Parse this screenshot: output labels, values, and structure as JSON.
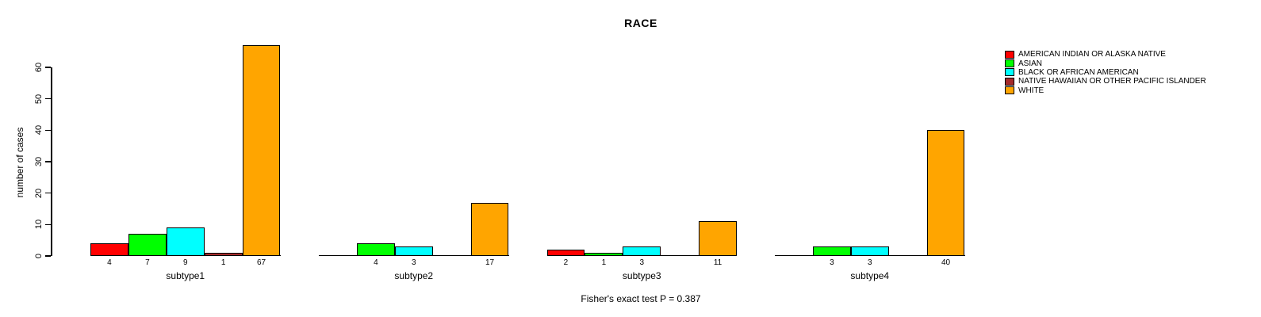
{
  "chart_data": {
    "type": "bar",
    "title": "RACE",
    "ylabel": "number of cases",
    "xlabel": "",
    "yticks": [
      0,
      10,
      20,
      30,
      40,
      50,
      60
    ],
    "ylim": [
      0,
      67
    ],
    "grid": false,
    "legend_position": "top-right",
    "categories": [
      "subtype1",
      "subtype2",
      "subtype3",
      "subtype4"
    ],
    "series": [
      {
        "name": "AMERICAN INDIAN OR ALASKA NATIVE",
        "color": "#FF0000",
        "values": [
          4,
          0,
          2,
          0
        ]
      },
      {
        "name": "ASIAN",
        "color": "#00FF00",
        "values": [
          7,
          4,
          1,
          3
        ]
      },
      {
        "name": "BLACK OR AFRICAN AMERICAN",
        "color": "#00FFFF",
        "values": [
          9,
          3,
          3,
          3
        ]
      },
      {
        "name": "NATIVE HAWAIIAN OR OTHER PACIFIC ISLANDER",
        "color": "#A52A2A",
        "values": [
          1,
          0,
          0,
          0
        ]
      },
      {
        "name": "WHITE",
        "color": "#FFA500",
        "values": [
          67,
          17,
          11,
          40
        ]
      }
    ],
    "bar_value_labels": "value printed below each nonzero bar; zero bars drawn as flat baseline segments with no label",
    "footer": "Fisher's exact test P = 0.387"
  }
}
